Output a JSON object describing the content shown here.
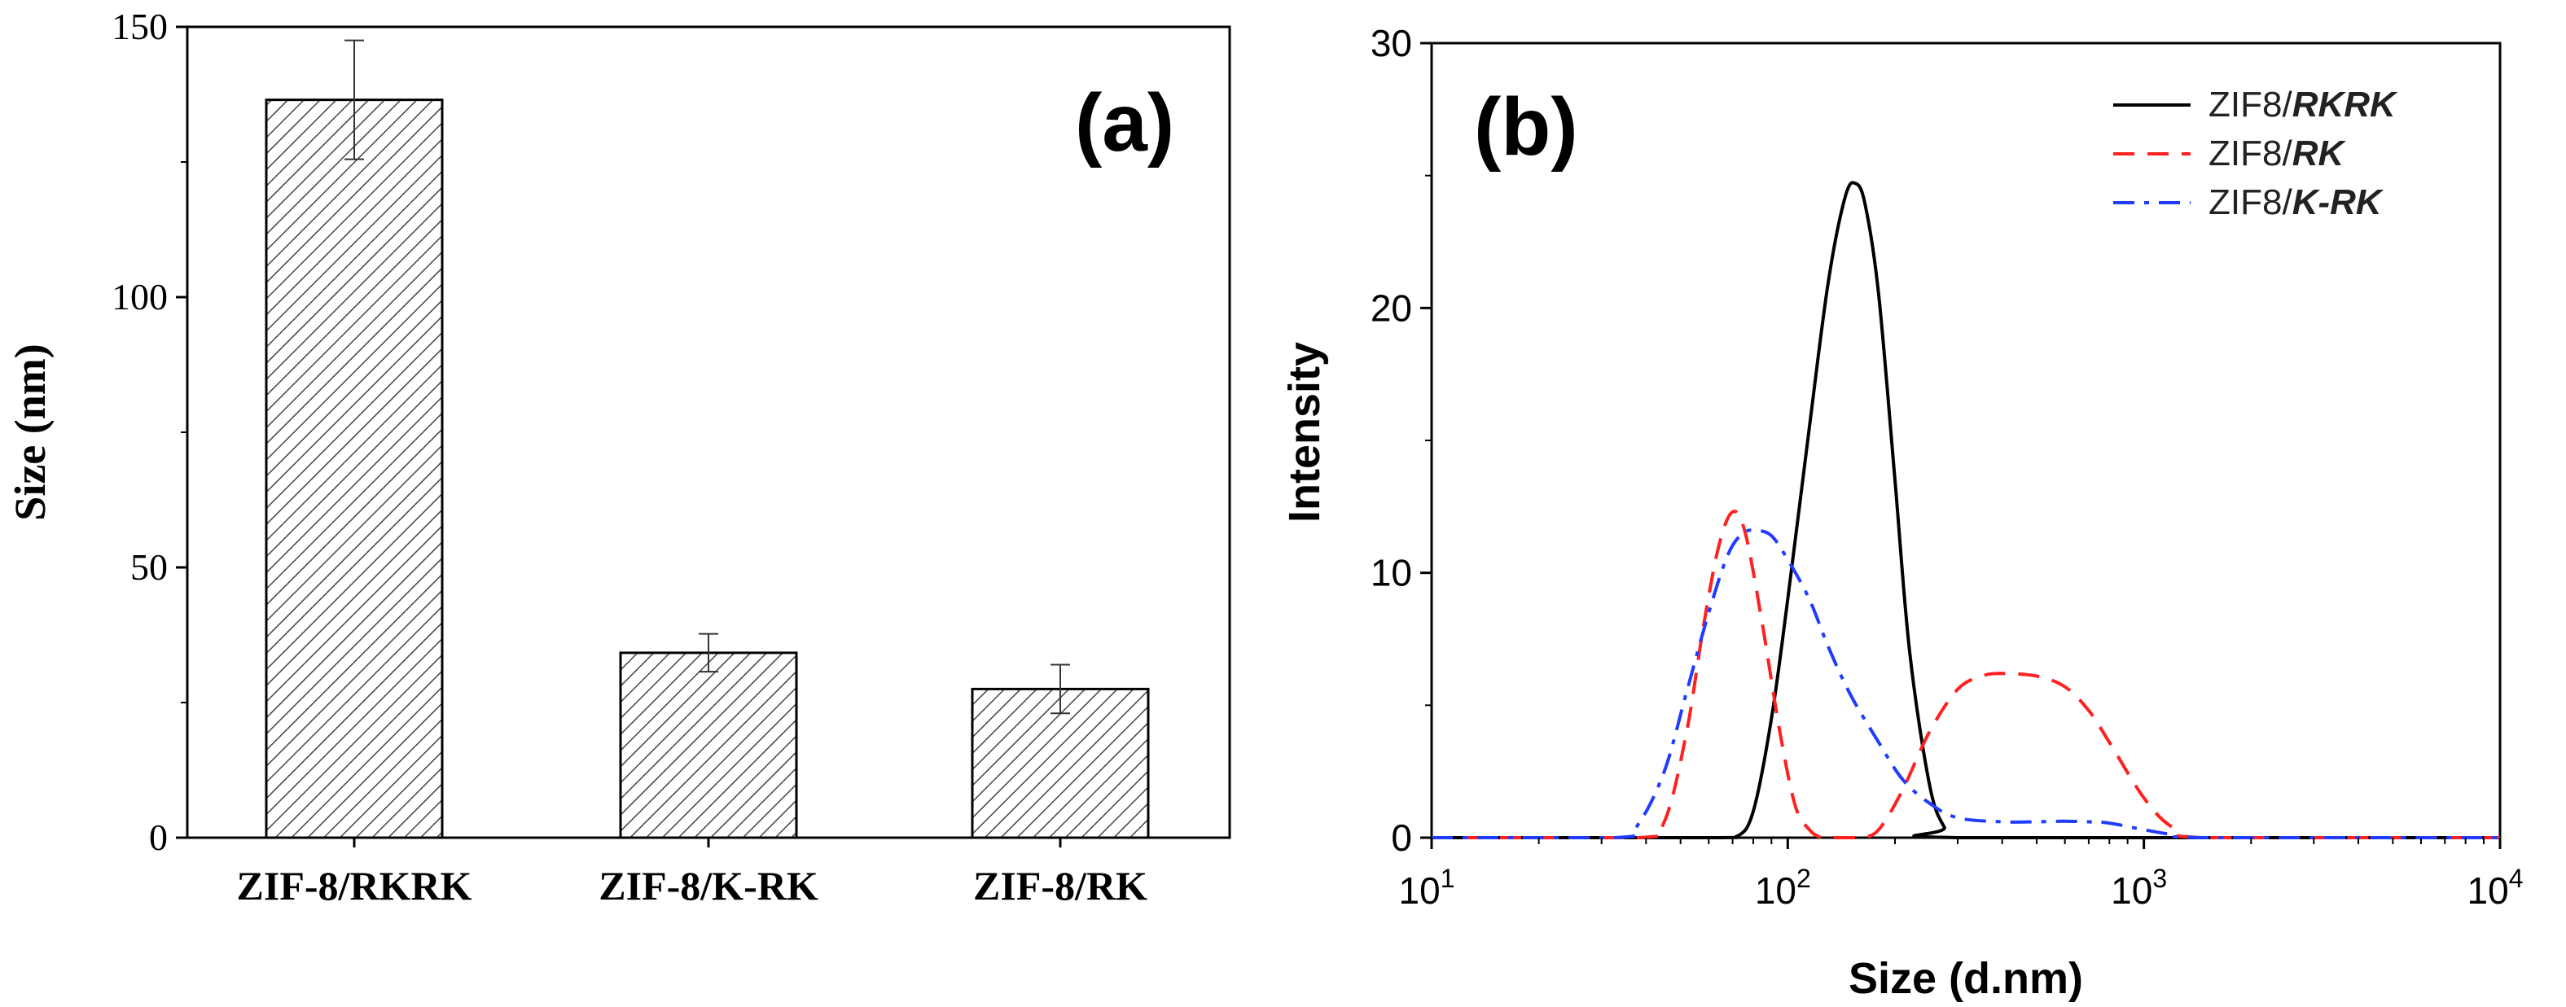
{
  "colors": {
    "axis": "#000000",
    "bar_fill": "#ffffff",
    "hatch": "#444444",
    "rkrk": "#000000",
    "rk": "#ff2020",
    "krk": "#1f3cff"
  },
  "chart_data": [
    {
      "panel_label": "(a)",
      "type": "bar",
      "title": "",
      "xlabel": "",
      "ylabel": "Size (nm)",
      "ylim": [
        0,
        150
      ],
      "yticks": [
        "0",
        "50",
        "100",
        "150"
      ],
      "categories": [
        "ZIF-8/RKRK",
        "ZIF-8/K-RK",
        "ZIF-8/RK"
      ],
      "values": [
        136.5,
        34.2,
        27.5
      ],
      "errors": [
        11.0,
        3.5,
        4.5
      ],
      "pattern": "diagonal-hatch"
    },
    {
      "panel_label": "(b)",
      "type": "line",
      "title": "",
      "xlabel": "Size (d.nm)",
      "ylabel": "Intensity",
      "xscale": "log",
      "xlim": [
        10,
        10000
      ],
      "ylim": [
        0,
        30
      ],
      "yticks": [
        "0",
        "10",
        "20",
        "30"
      ],
      "xticks": [
        {
          "base": "10",
          "exp": "1"
        },
        {
          "base": "10",
          "exp": "2"
        },
        {
          "base": "10",
          "exp": "3"
        },
        {
          "base": "10",
          "exp": "4"
        }
      ],
      "legend_position": "top-right",
      "series": [
        {
          "name": "ZIF8/RKRK",
          "legend_prefix": "ZIF8/",
          "legend_bold": "RKRK",
          "style": "solid",
          "x": [
            10,
            60,
            72,
            80,
            90,
            100,
            115,
            130,
            145,
            155,
            165,
            180,
            200,
            220,
            250,
            275,
            300,
            10000
          ],
          "y": [
            0,
            0,
            0.05,
            1.0,
            4.5,
            9.0,
            15.5,
            21.0,
            24.2,
            24.7,
            23.9,
            20.5,
            13.5,
            7.0,
            2.0,
            0.4,
            0,
            0
          ]
        },
        {
          "name": "ZIF8/RK",
          "legend_prefix": "ZIF8/",
          "legend_bold": "RK",
          "style": "dashed",
          "x": [
            10,
            38,
            45,
            52,
            58,
            64,
            70,
            76,
            85,
            95,
            105,
            115,
            125,
            140,
            160,
            180,
            210,
            250,
            300,
            350,
            400,
            500,
            600,
            700,
            800,
            1000,
            1200,
            1500,
            10000
          ],
          "y": [
            0,
            0,
            0.6,
            4.0,
            8.0,
            11.0,
            12.3,
            11.5,
            8.0,
            4.0,
            1.2,
            0.3,
            0,
            0,
            0,
            0.3,
            1.8,
            4.0,
            5.6,
            6.1,
            6.2,
            6.1,
            5.7,
            4.8,
            3.6,
            1.5,
            0.4,
            0,
            0
          ]
        },
        {
          "name": "ZIF8/K-RK",
          "legend_prefix": "ZIF8/",
          "legend_bold": "K-RK",
          "style": "dashdot",
          "x": [
            10,
            33,
            38,
            45,
            52,
            60,
            68,
            75,
            82,
            90,
            100,
            115,
            130,
            150,
            180,
            210,
            250,
            300,
            400,
            500,
            600,
            700,
            800,
            1000,
            1200,
            1500,
            10000
          ],
          "y": [
            0,
            0,
            0.5,
            2.5,
            5.5,
            8.5,
            10.7,
            11.5,
            11.6,
            11.4,
            10.5,
            9.0,
            7.2,
            5.4,
            3.6,
            2.2,
            1.3,
            0.75,
            0.6,
            0.6,
            0.62,
            0.6,
            0.55,
            0.3,
            0.12,
            0,
            0
          ]
        }
      ]
    }
  ]
}
